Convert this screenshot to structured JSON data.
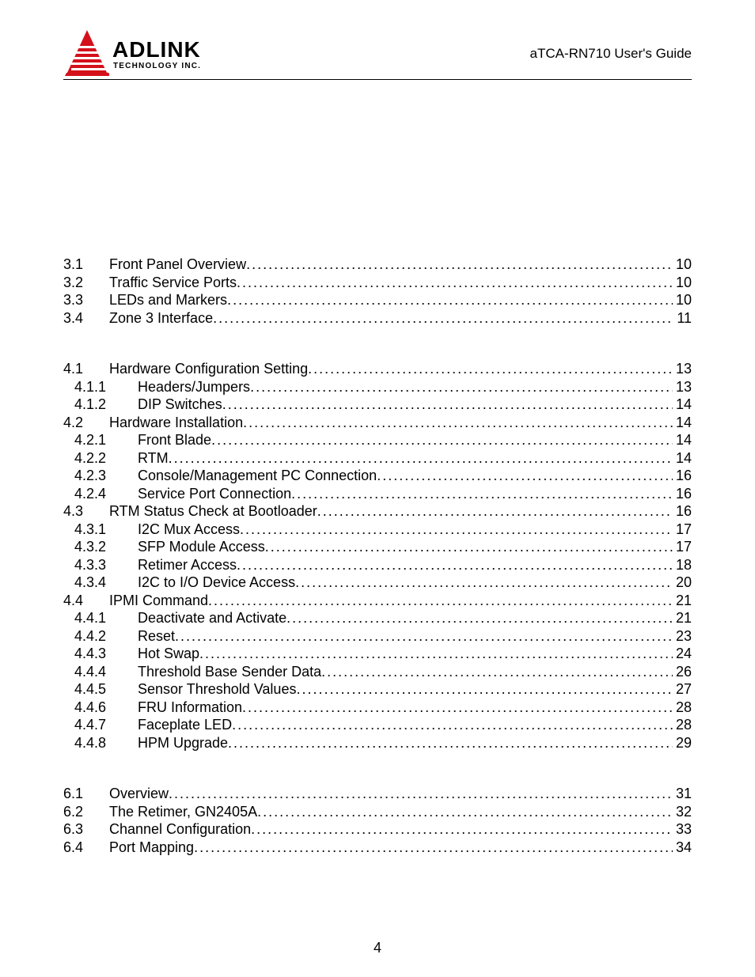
{
  "header": {
    "logo_text_main": "ADLINK",
    "logo_text_sub": "TECHNOLOGY INC.",
    "doc_title": "aTCA-RN710 User's Guide",
    "logo_colors": {
      "red": "#d4111b",
      "black": "#000000"
    }
  },
  "page_number": "4",
  "toc_groups": [
    {
      "entries": [
        {
          "level": 1,
          "num": "3.1",
          "title": "Front Panel Overview",
          "page": "10"
        },
        {
          "level": 1,
          "num": "3.2",
          "title": "Traffic Service Ports",
          "page": "10"
        },
        {
          "level": 1,
          "num": "3.3",
          "title": "LEDs and Markers",
          "page": "10"
        },
        {
          "level": 1,
          "num": "3.4",
          "title": "Zone 3 Interface",
          "page": "11"
        }
      ]
    },
    {
      "entries": [
        {
          "level": 1,
          "num": "4.1",
          "title": "Hardware Configuration Setting",
          "page": "13"
        },
        {
          "level": 2,
          "num": "4.1.1",
          "title": "Headers/Jumpers",
          "page": "13"
        },
        {
          "level": 2,
          "num": "4.1.2",
          "title": "DIP Switches",
          "page": "14"
        },
        {
          "level": 1,
          "num": "4.2",
          "title": "Hardware Installation",
          "page": "14"
        },
        {
          "level": 2,
          "num": "4.2.1",
          "title": "Front Blade",
          "page": "14"
        },
        {
          "level": 2,
          "num": "4.2.2",
          "title": "RTM",
          "page": "14"
        },
        {
          "level": 2,
          "num": "4.2.3",
          "title": "Console/Management PC Connection",
          "page": "16"
        },
        {
          "level": 2,
          "num": "4.2.4",
          "title": "Service Port Connection",
          "page": "16"
        },
        {
          "level": 1,
          "num": "4.3",
          "title": "RTM Status Check at Bootloader",
          "page": "16"
        },
        {
          "level": 2,
          "num": "4.3.1",
          "title": "I2C Mux Access",
          "page": "17"
        },
        {
          "level": 2,
          "num": "4.3.2",
          "title": "SFP Module Access",
          "page": "17"
        },
        {
          "level": 2,
          "num": "4.3.3",
          "title": "Retimer Access",
          "page": "18"
        },
        {
          "level": 2,
          "num": "4.3.4",
          "title": "I2C to I/O Device Access",
          "page": "20"
        },
        {
          "level": 1,
          "num": "4.4",
          "title": "IPMI Command",
          "page": "21"
        },
        {
          "level": 2,
          "num": "4.4.1",
          "title": "Deactivate and Activate",
          "page": "21"
        },
        {
          "level": 2,
          "num": "4.4.2",
          "title": "Reset",
          "page": "23"
        },
        {
          "level": 2,
          "num": "4.4.3",
          "title": "Hot Swap",
          "page": "24"
        },
        {
          "level": 2,
          "num": "4.4.4",
          "title": "Threshold Base Sender Data",
          "page": "26"
        },
        {
          "level": 2,
          "num": "4.4.5",
          "title": "Sensor Threshold Values",
          "page": "27"
        },
        {
          "level": 2,
          "num": "4.4.6",
          "title": "FRU Information",
          "page": "28"
        },
        {
          "level": 2,
          "num": "4.4.7",
          "title": "Faceplate LED",
          "page": "28"
        },
        {
          "level": 2,
          "num": "4.4.8",
          "title": "HPM Upgrade",
          "page": "29"
        }
      ]
    },
    {
      "entries": [
        {
          "level": 1,
          "num": "6.1",
          "title": "Overview",
          "page": "31"
        },
        {
          "level": 1,
          "num": "6.2",
          "title": "The Retimer, GN2405A",
          "page": "32"
        },
        {
          "level": 1,
          "num": "6.3",
          "title": "Channel Configuration",
          "page": "33"
        },
        {
          "level": 1,
          "num": "6.4",
          "title": "Port Mapping",
          "page": "34"
        }
      ]
    }
  ]
}
